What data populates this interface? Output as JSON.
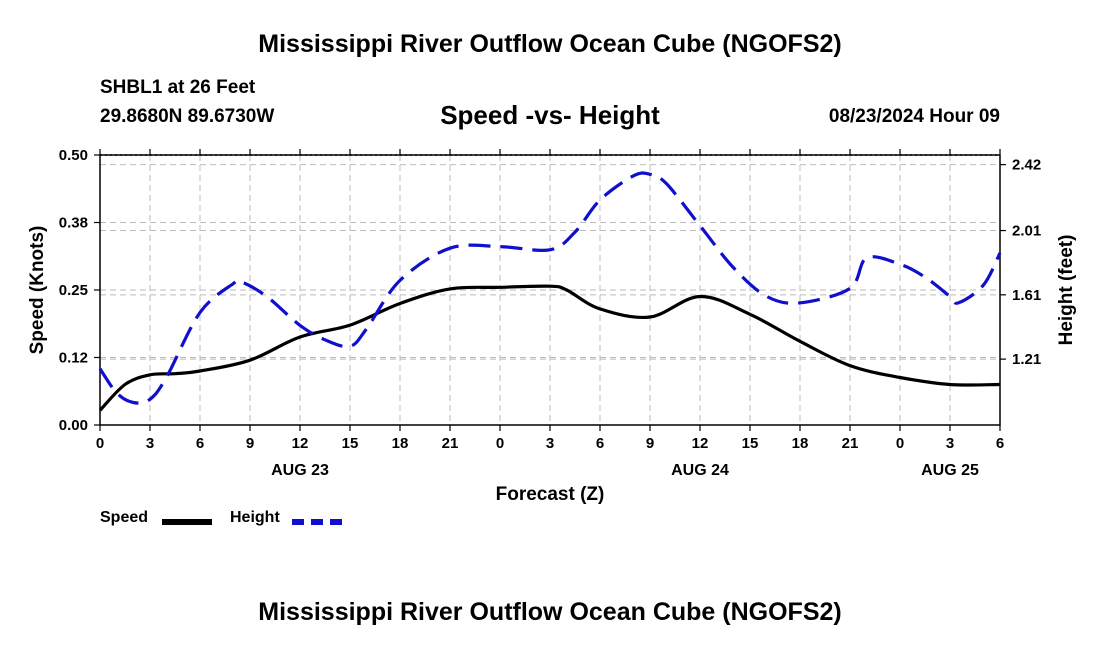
{
  "header": {
    "title": "Mississippi River Outflow Ocean Cube (NGOFS2)",
    "station": "SHBL1 at 26 Feet",
    "coords": "29.8680N  89.6730W",
    "subtitle": "Speed -vs- Height",
    "run_time": "08/23/2024 Hour 09"
  },
  "footer": {
    "title": "Mississippi River Outflow Ocean Cube (NGOFS2)"
  },
  "legend": {
    "speed_label": "Speed",
    "height_label": "Height"
  },
  "colors": {
    "speed": "#000000",
    "height": "#1010cc",
    "grid": "#bbbbbb"
  },
  "chart_data": {
    "type": "line",
    "title": "Speed -vs- Height",
    "xlabel": "Forecast (Z)",
    "ylabel": "Speed (Knots)",
    "y2label": "Height (feet)",
    "xlim": [
      0,
      54
    ],
    "ylim": [
      0,
      0.5
    ],
    "y2lim": [
      0.8,
      2.48
    ],
    "x_ticks": [
      0,
      3,
      6,
      9,
      12,
      15,
      18,
      21,
      24,
      27,
      30,
      33,
      36,
      39,
      42,
      45,
      48,
      51,
      54
    ],
    "x_tick_labels": [
      "0",
      "3",
      "6",
      "9",
      "12",
      "15",
      "18",
      "21",
      "0",
      "3",
      "6",
      "9",
      "12",
      "15",
      "18",
      "21",
      "0",
      "3",
      "6"
    ],
    "date_labels": [
      {
        "x": 12,
        "label": "AUG 23"
      },
      {
        "x": 36,
        "label": "AUG 24"
      },
      {
        "x": 51,
        "label": "AUG 25"
      }
    ],
    "y_ticks": [
      0.0,
      0.125,
      0.25,
      0.375,
      0.5
    ],
    "y_tick_labels": [
      "0.00",
      "0.12",
      "0.25",
      "0.38",
      "0.50"
    ],
    "y2_ticks": [
      1.21,
      1.61,
      2.01,
      2.42
    ],
    "y2_tick_labels": [
      "1.21",
      "1.61",
      "2.01",
      "2.42"
    ],
    "grid": true,
    "legend_position": "bottom-left",
    "series": [
      {
        "name": "Speed",
        "axis": "left",
        "x": [
          0,
          1.5,
          3,
          4.5,
          6,
          9,
          12,
          15,
          18,
          21,
          24,
          27,
          28,
          30,
          33,
          36,
          39,
          42,
          45,
          48,
          51,
          54
        ],
        "values": [
          0.027,
          0.075,
          0.093,
          0.095,
          0.1,
          0.12,
          0.163,
          0.185,
          0.225,
          0.252,
          0.255,
          0.257,
          0.25,
          0.215,
          0.2,
          0.238,
          0.205,
          0.155,
          0.11,
          0.088,
          0.075,
          0.075
        ]
      },
      {
        "name": "Height",
        "axis": "right",
        "x": [
          0,
          1,
          2,
          3,
          4,
          6,
          8,
          8.5,
          10,
          12,
          13.5,
          15,
          16,
          18,
          21,
          24,
          27,
          28.5,
          30,
          32,
          33,
          34,
          36,
          38,
          40,
          42,
          45,
          46,
          48,
          49.5,
          51,
          51.5,
          53,
          54
        ],
        "values": [
          1.15,
          1.0,
          0.94,
          0.96,
          1.1,
          1.5,
          1.68,
          1.69,
          1.6,
          1.42,
          1.33,
          1.29,
          1.4,
          1.7,
          1.9,
          1.91,
          1.89,
          2.0,
          2.2,
          2.35,
          2.36,
          2.3,
          2.04,
          1.78,
          1.6,
          1.56,
          1.65,
          1.84,
          1.8,
          1.72,
          1.6,
          1.56,
          1.67,
          1.87
        ]
      }
    ]
  }
}
